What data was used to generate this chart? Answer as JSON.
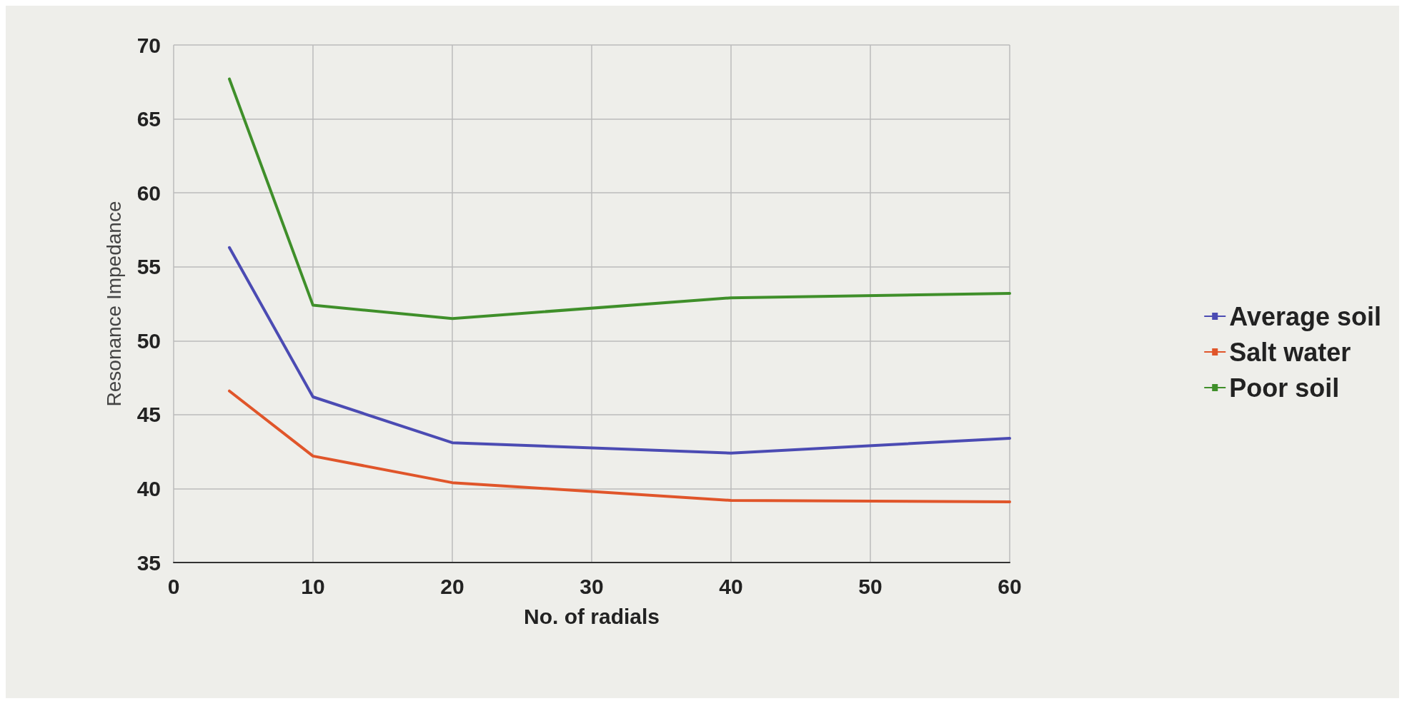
{
  "chart_data": {
    "type": "line",
    "xlabel": "No. of radials",
    "ylabel": "Resonance Impedance",
    "x": [
      4,
      10,
      20,
      40,
      60
    ],
    "series": [
      {
        "name": "Average soil",
        "color": "#4b4bb3",
        "values": [
          56.3,
          46.2,
          43.1,
          42.4,
          43.4
        ]
      },
      {
        "name": "Salt water",
        "color": "#e0552a",
        "values": [
          46.6,
          42.2,
          40.4,
          39.2,
          39.1
        ]
      },
      {
        "name": "Poor soil",
        "color": "#3f8f2a",
        "values": [
          67.7,
          52.4,
          51.5,
          52.9,
          53.2
        ]
      }
    ],
    "xlim": [
      0,
      60
    ],
    "xticks": [
      0,
      10,
      20,
      30,
      40,
      50,
      60
    ],
    "ylim": [
      35,
      70
    ],
    "yticks": [
      35,
      40,
      45,
      50,
      55,
      60,
      65,
      70
    ],
    "grid": true,
    "legend": "right",
    "marker": "none",
    "line_style": "solid"
  }
}
